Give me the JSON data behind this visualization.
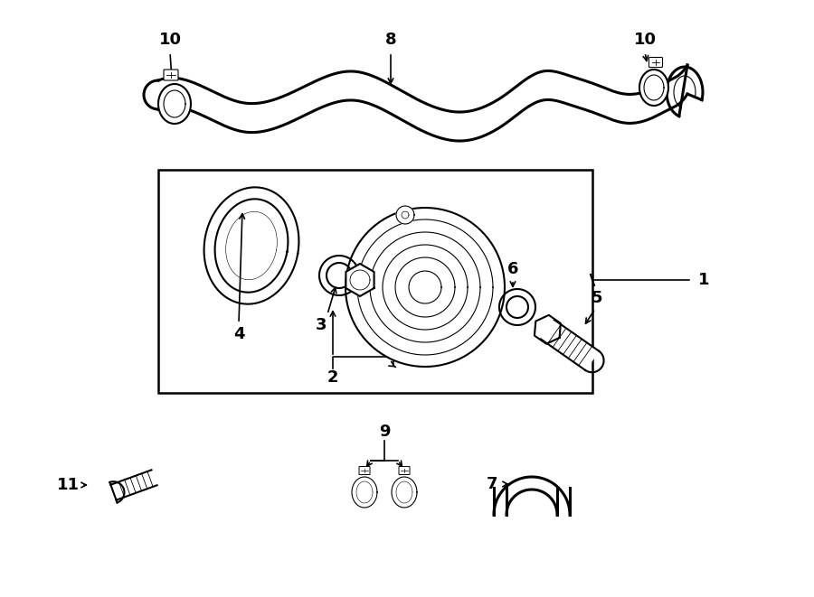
{
  "bg_color": "#ffffff",
  "line_color": "#000000",
  "fig_width": 9.0,
  "fig_height": 6.61,
  "dpi": 100,
  "fs": 13
}
